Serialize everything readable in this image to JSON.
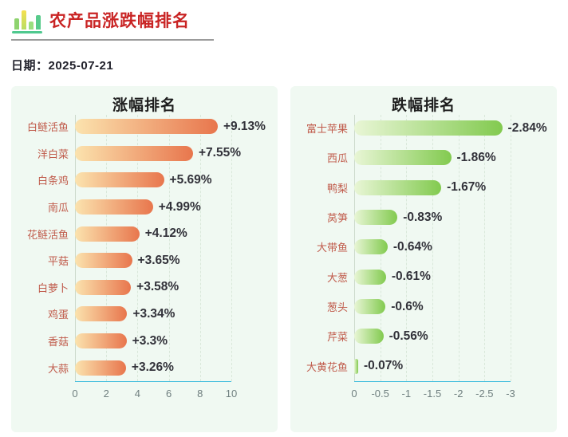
{
  "header": {
    "title": "农产品涨跌幅排名",
    "icon": "bar-chart-icon"
  },
  "date_label": "日期：2025-07-21",
  "colors": {
    "title_red": "#c92424",
    "panel_background": "#f0f9f2",
    "axis_line_cyan": "#41bddd",
    "category_label": "#c05c4c",
    "value_label": "#32323a",
    "rise_bar_gradient": [
      "#fbe3ae",
      "#e8764d"
    ],
    "fall_bar_gradient": [
      "#e9f6d6",
      "#82ca4f"
    ]
  },
  "chart_data": [
    {
      "type": "bar",
      "orientation": "horizontal",
      "title": "涨幅排名",
      "categories": [
        "白鲢活鱼",
        "洋白菜",
        "白条鸡",
        "南瓜",
        "花鲢活鱼",
        "平菇",
        "白萝卜",
        "鸡蛋",
        "香菇",
        "大蒜"
      ],
      "values": [
        9.13,
        7.55,
        5.69,
        4.99,
        4.12,
        3.65,
        3.58,
        3.34,
        3.3,
        3.26
      ],
      "labels": [
        "+9.13%",
        "+7.55%",
        "+5.69%",
        "+4.99%",
        "+4.12%",
        "+3.65%",
        "+3.58%",
        "+3.34%",
        "+3.3%",
        "+3.26%"
      ],
      "xlabel": "",
      "ylabel": "",
      "xlim": [
        0,
        10
      ],
      "xticks": [
        "0",
        "2",
        "4",
        "6",
        "8",
        "10"
      ],
      "grid": "dashed-vertical",
      "legend": "none",
      "bar_gradient": [
        "#fbe3ae",
        "#e8764d"
      ]
    },
    {
      "type": "bar",
      "orientation": "horizontal",
      "title": "跌幅排名",
      "categories": [
        "富士苹果",
        "西瓜",
        "鸭梨",
        "莴笋",
        "大带鱼",
        "大葱",
        "葱头",
        "芹菜",
        "大黄花鱼"
      ],
      "values": [
        -2.84,
        -1.86,
        -1.67,
        -0.83,
        -0.64,
        -0.61,
        -0.6,
        -0.56,
        -0.07
      ],
      "labels": [
        "-2.84%",
        "-1.86%",
        "-1.67%",
        "-0.83%",
        "-0.64%",
        "-0.61%",
        "-0.6%",
        "-0.56%",
        "-0.07%"
      ],
      "xlabel": "",
      "ylabel": "",
      "xlim": [
        0,
        -3
      ],
      "xticks": [
        "0",
        "-0.5",
        "-1",
        "-1.5",
        "-2",
        "-2.5",
        "-3"
      ],
      "grid": "dashed-vertical",
      "legend": "none",
      "bar_gradient": [
        "#e9f6d6",
        "#82ca4f"
      ]
    }
  ]
}
